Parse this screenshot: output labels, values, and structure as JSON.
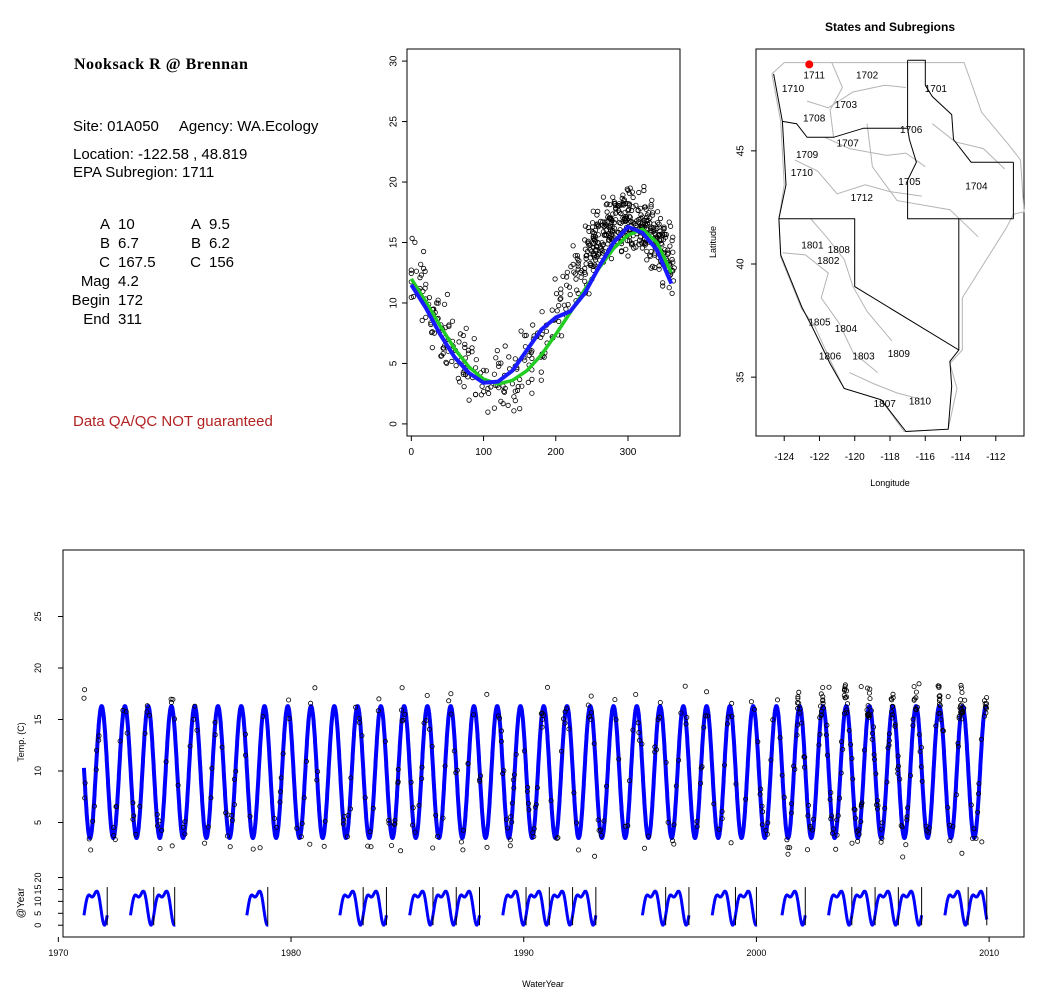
{
  "info": {
    "title": "Nooksack R @ Brennan",
    "site_line": "Site: 01A050     Agency: WA.Ecology",
    "location_line": "Location: -122.58 , 48.819",
    "subregion_line": "EPA Subregion: 1711",
    "params_left": [
      {
        "key": "A",
        "value": "10"
      },
      {
        "key": "B",
        "value": "6.7"
      },
      {
        "key": "C",
        "value": "167.5"
      },
      {
        "key": "Mag",
        "value": "4.2"
      },
      {
        "key": "Begin",
        "value": "172"
      },
      {
        "key": "End",
        "value": "311"
      }
    ],
    "params_right": [
      {
        "key": "A",
        "value": "9.5"
      },
      {
        "key": "B",
        "value": "6.2"
      },
      {
        "key": "C",
        "value": "156"
      }
    ],
    "qa_note": "Data QA/QC NOT guaranteed",
    "qa_color": "#b22222"
  },
  "chart_data": [
    {
      "type": "scatter",
      "id": "seasonal",
      "title": "",
      "xlabel": "",
      "ylabel": "",
      "xlim": [
        -6,
        372
      ],
      "ylim": [
        -1,
        31
      ],
      "xticks": [
        0,
        100,
        200,
        300
      ],
      "yticks": [
        0,
        5,
        10,
        15,
        20,
        25,
        30
      ],
      "series": [
        {
          "kind": "points",
          "description_key": "daily observations",
          "color": "#000000",
          "fit": {
            "A": 10,
            "B": 6.7,
            "C": 167.5
          }
        },
        {
          "kind": "line",
          "color": "#22cc22",
          "x": [
            0,
            20,
            40,
            60,
            80,
            100,
            120,
            140,
            160,
            180,
            200,
            220,
            240,
            260,
            280,
            300,
            320,
            340,
            360
          ],
          "y": [
            12.0,
            10.1,
            8.1,
            6.2,
            4.7,
            3.7,
            3.3,
            3.6,
            4.4,
            5.7,
            7.4,
            9.2,
            11.1,
            12.9,
            14.5,
            15.6,
            16.1,
            15.0,
            12.5
          ]
        },
        {
          "kind": "line",
          "color": "#1a1aff",
          "x": [
            0,
            20,
            40,
            60,
            80,
            100,
            120,
            140,
            160,
            180,
            200,
            220,
            240,
            260,
            280,
            300,
            320,
            340,
            360
          ],
          "y": [
            11.5,
            9.6,
            7.4,
            5.5,
            4.2,
            3.4,
            3.5,
            4.4,
            6.1,
            7.8,
            8.8,
            9.3,
            10.8,
            13.0,
            15.0,
            16.3,
            15.8,
            14.4,
            11.6
          ]
        }
      ]
    },
    {
      "type": "map",
      "id": "regions",
      "title": "States and Subregions",
      "xlabel": "Longitude",
      "ylabel": "Latitude",
      "xlim": [
        -125.6,
        -110.4
      ],
      "ylim": [
        32.4,
        49.5
      ],
      "xticks": [
        -124,
        -122,
        -120,
        -118,
        -116,
        -114,
        -112
      ],
      "yticks": [
        35,
        40,
        45
      ],
      "site": {
        "lon": -122.58,
        "lat": 48.819,
        "color": "#ff0000"
      },
      "region_labels": [
        {
          "label": "1711",
          "lon": -122.3,
          "lat": 48.3
        },
        {
          "label": "1710",
          "lon": -123.5,
          "lat": 47.7
        },
        {
          "label": "1702",
          "lon": -119.3,
          "lat": 48.3
        },
        {
          "label": "1701",
          "lon": -115.4,
          "lat": 47.7
        },
        {
          "label": "1703",
          "lon": -120.5,
          "lat": 47.0
        },
        {
          "label": "1708",
          "lon": -122.3,
          "lat": 46.4
        },
        {
          "label": "1706",
          "lon": -116.8,
          "lat": 45.9
        },
        {
          "label": "1707",
          "lon": -120.4,
          "lat": 45.3
        },
        {
          "label": "1709",
          "lon": -122.7,
          "lat": 44.8
        },
        {
          "label": "1710",
          "lon": -123.0,
          "lat": 44.0
        },
        {
          "label": "1705",
          "lon": -116.9,
          "lat": 43.6
        },
        {
          "label": "1704",
          "lon": -113.1,
          "lat": 43.4
        },
        {
          "label": "1712",
          "lon": -119.6,
          "lat": 42.9
        },
        {
          "label": "1801",
          "lon": -122.4,
          "lat": 40.8
        },
        {
          "label": "1808",
          "lon": -120.9,
          "lat": 40.6
        },
        {
          "label": "1802",
          "lon": -121.5,
          "lat": 40.1
        },
        {
          "label": "1805",
          "lon": -122.0,
          "lat": 37.4
        },
        {
          "label": "1804",
          "lon": -120.5,
          "lat": 37.1
        },
        {
          "label": "1806",
          "lon": -121.4,
          "lat": 35.9
        },
        {
          "label": "1803",
          "lon": -119.5,
          "lat": 35.9
        },
        {
          "label": "1809",
          "lon": -117.5,
          "lat": 36.0
        },
        {
          "label": "1807",
          "lon": -118.3,
          "lat": 33.8
        },
        {
          "label": "1810",
          "lon": -116.3,
          "lat": 33.9
        }
      ]
    },
    {
      "type": "line",
      "id": "timeseries",
      "title": "",
      "xlabel": "WaterYear",
      "ylabel": "Temp. (C)",
      "xlim": [
        1970.2,
        2011.5
      ],
      "ylim": [
        0,
        30
      ],
      "xticks": [
        1970,
        1980,
        1990,
        2000,
        2010
      ],
      "yticks": [
        5,
        10,
        15,
        20,
        25
      ],
      "series": [
        {
          "name": "",
          "color": "#0000ff",
          "year_start": 1971.1,
          "year_end": 2009.9,
          "min": 3.5,
          "max": 16.3
        }
      ]
    },
    {
      "type": "line",
      "id": "annual-strip",
      "title": "",
      "xlabel": "",
      "ylabel": "@Year",
      "ylim": [
        -2,
        24
      ],
      "yticks": [
        0,
        5,
        10,
        15,
        20
      ],
      "segments": [
        [
          1971.1,
          1972.1
        ],
        [
          1973.0,
          1975.0
        ],
        [
          1978.0,
          1979.0
        ],
        [
          1982.0,
          1984.1
        ],
        [
          1985.1,
          1988.1
        ],
        [
          1989.0,
          1993.1
        ],
        [
          1995.1,
          1997.1
        ],
        [
          1998.0,
          2000.0
        ],
        [
          2001.0,
          2002.1
        ],
        [
          2003.0,
          2007.1
        ],
        [
          2008.0,
          2009.9
        ]
      ]
    }
  ]
}
